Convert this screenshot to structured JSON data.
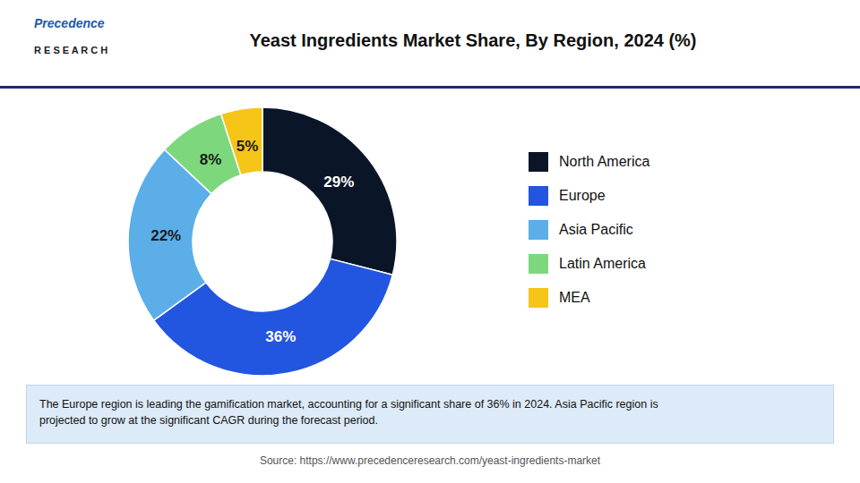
{
  "chart_data": {
    "type": "donut",
    "title": "Yeast Ingredients Market Share, By Region, 2024 (%)",
    "categories": [
      "North America",
      "Europe",
      "Asia Pacific",
      "Latin America",
      "MEA"
    ],
    "values": [
      29,
      36,
      22,
      8,
      5
    ],
    "value_labels": [
      "29%",
      "36%",
      "22%",
      "8%",
      "5%"
    ],
    "colors": [
      "#0a1628",
      "#2255e0",
      "#5baee8",
      "#7dd87d",
      "#f5c518"
    ],
    "data_labels": true,
    "legend": "right",
    "annotations": [
      "Precedence",
      "R E S E A R C H",
      "The Europe region is leading the gamification market, accounting for a significant share of 36% in 2024. Asia Pacific region is\nprojected to grow at the significant CAGR during the forecast period.",
      "Source: https://www.precedenceresearch.com/yeast-ingredients-market"
    ]
  }
}
